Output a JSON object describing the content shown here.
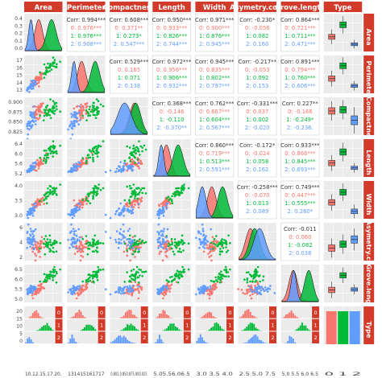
{
  "chart_data": {
    "type": "scatter-matrix",
    "variables": [
      "Area",
      "Perimeter",
      "Compactness",
      "Length",
      "Width",
      "Asymetry.coef",
      "Grove.length",
      "Type"
    ],
    "groups": [
      "0",
      "1",
      "2"
    ],
    "colors": {
      "0": "#F8766D",
      "1": "#00BA38",
      "2": "#619CFF",
      "strip": "#d23a2a",
      "panel": "#ebebeb",
      "grid": "#ffffff"
    },
    "ranges": {
      "Area": [
        10,
        21.5
      ],
      "Perimeter": [
        12.4,
        17.4
      ],
      "Compactness": [
        0.805,
        0.92
      ],
      "Length": [
        4.8,
        6.8
      ],
      "Width": [
        2.6,
        4.1
      ],
      "Asymetry.coef": [
        0,
        8.5
      ],
      "Grove.length": [
        4.4,
        6.6
      ]
    },
    "group_means": {
      "Area": [
        14.33,
        18.33,
        11.87
      ],
      "Perimeter": [
        14.29,
        16.14,
        13.25
      ],
      "Compactness": [
        0.88,
        0.884,
        0.849
      ],
      "Length": [
        5.51,
        6.15,
        5.23
      ],
      "Width": [
        3.24,
        3.68,
        2.85
      ],
      "Asymetry.coef": [
        2.67,
        3.64,
        4.79
      ],
      "Grove.length": [
        5.09,
        6.02,
        5.12
      ]
    },
    "group_sd": {
      "Area": [
        1.21,
        1.44,
        0.72
      ],
      "Perimeter": [
        0.57,
        0.62,
        0.34
      ],
      "Compactness": [
        0.016,
        0.016,
        0.022
      ],
      "Length": [
        0.23,
        0.27,
        0.14
      ],
      "Width": [
        0.18,
        0.19,
        0.15
      ],
      "Asymetry.coef": [
        1.17,
        1.18,
        1.34
      ],
      "Grove.length": [
        0.26,
        0.25,
        0.16
      ]
    },
    "y_ticks": {
      "Area": [
        "0.4",
        "0.3",
        "0.2",
        "0.1",
        "0.0"
      ],
      "Perimeter": [
        "17",
        "16",
        "15",
        "14",
        "13"
      ],
      "Compactness": [
        "0.900",
        "0.875",
        "0.850",
        "0.825"
      ],
      "Length": [
        "6.4",
        "6.0",
        "5.6",
        "5.2"
      ],
      "Width": [
        "4.0",
        "3.5",
        "3.0"
      ],
      "Asymetry.coef": [
        "6",
        "4",
        "2"
      ],
      "Grove.length": [
        "6.5",
        "6.0",
        "5.5",
        "5.0"
      ],
      "Type": [
        "20",
        "15",
        "10",
        "5",
        "0"
      ]
    },
    "x_ticks": {
      "Area": "10.12.15.17.20.",
      "Perimeter": "131415161717",
      "Compactness": "0.802.0.850.875.900.925",
      "Length": "5.05.56.06.5",
      "Width": "3.0 3.5 4.0",
      "Asymetry.coef": "2.5 5.0 7.5",
      "Grove.length": "5.0 5.5 6.0 6.5",
      "Type": "0 1 2"
    },
    "correlations": [
      {
        "row": "Area",
        "col": "Perimeter",
        "all": "Corr: 0.994***",
        "g0": "0: 0.976***",
        "g1": "1: 0.976***",
        "g2": "2: 0.908***"
      },
      {
        "row": "Area",
        "col": "Compactness",
        "all": "Corr: 0.608***",
        "g0": "0: 0.371**",
        "g1": "1: 0.273*",
        "g2": "2: 0.547***"
      },
      {
        "row": "Area",
        "col": "Length",
        "all": "Corr: 0.950***",
        "g0": "0: 0.933***",
        "g1": "1: 0.826***",
        "g2": "2: 0.744***"
      },
      {
        "row": "Area",
        "col": "Width",
        "all": "Corr: 0.971***",
        "g0": "0: 0.900***",
        "g1": "1: 0.876***",
        "g2": "2: 0.945***"
      },
      {
        "row": "Area",
        "col": "Asymetry.coef",
        "all": "Corr: -0.230*",
        "g0": "0: -0.056",
        "g1": "1: 0.082",
        "g2": "2: 0.160"
      },
      {
        "row": "Area",
        "col": "Grove.length",
        "all": "Corr: 0.864***",
        "g0": "0: 0.721***",
        "g1": "1: 0.711***",
        "g2": "2: 0.471***"
      },
      {
        "row": "Perimeter",
        "col": "Compactness",
        "all": "Corr: 0.529***",
        "g0": "0: 0.165",
        "g1": "1: 0.071",
        "g2": "2: 0.138"
      },
      {
        "row": "Perimeter",
        "col": "Length",
        "all": "Corr: 0.972***",
        "g0": "0: 0.956***",
        "g1": "1: 0.906***",
        "g2": "2: 0.932***"
      },
      {
        "row": "Perimeter",
        "col": "Width",
        "all": "Corr: 0.945***",
        "g0": "0: 0.835***",
        "g1": "1: 0.802***",
        "g2": "2: 0.797***"
      },
      {
        "row": "Perimeter",
        "col": "Asymetry.coef",
        "all": "Corr: -0.217**",
        "g0": "0: -0.053",
        "g1": "1: 0.092",
        "g2": "2: 0.153"
      },
      {
        "row": "Perimeter",
        "col": "Grove.length",
        "all": "Corr: 0.891***",
        "g0": "0: 0.794***",
        "g1": "1: 0.760***",
        "g2": "2: 0.606***"
      },
      {
        "row": "Compactness",
        "col": "Length",
        "all": "Corr: 0.368***",
        "g0": "0: -0.146",
        "g1": "1: -0.110",
        "g2": "2: -0.370**"
      },
      {
        "row": "Compactness",
        "col": "Width",
        "all": "Corr: 0.762***",
        "g0": "0: 0.667***",
        "g1": "1: 0.604***",
        "g2": "2: 0.567***"
      },
      {
        "row": "Compactness",
        "col": "Asymetry.coef",
        "all": "Corr: -0.331***",
        "g0": "0: 0.037",
        "g1": "1: 0.002",
        "g2": "2: -0.020"
      },
      {
        "row": "Compactness",
        "col": "Grove.length",
        "all": "Corr: 0.227**",
        "g0": "0: -0.166",
        "g1": "1: -0.249*",
        "g2": "2: -0.236."
      },
      {
        "row": "Length",
        "col": "Width",
        "all": "Corr: 0.860***",
        "g0": "0: 0.719***",
        "g1": "1: 0.513***",
        "g2": "2: 0.591***"
      },
      {
        "row": "Length",
        "col": "Asymetry.coef",
        "all": "Corr: -0.172*",
        "g0": "0: -0.024",
        "g1": "1: 0.058",
        "g2": "2: 0.162"
      },
      {
        "row": "Length",
        "col": "Grove.length",
        "all": "Corr: 0.933***",
        "g0": "0: 0.866***",
        "g1": "1: 0.845***",
        "g2": "2: 0.693***"
      },
      {
        "row": "Width",
        "col": "Asymetry.coef",
        "all": "Corr: -0.258***",
        "g0": "0: -0.070",
        "g1": "1: 0.013",
        "g2": "2: 0.089"
      },
      {
        "row": "Width",
        "col": "Grove.length",
        "all": "Corr: 0.749***",
        "g0": "0: 0.447***",
        "g1": "1: 0.555***",
        "g2": "2: 0.260*"
      },
      {
        "row": "Asymetry.coef",
        "col": "Grove.length",
        "all": "Corr: -0.011",
        "g0": "0: 0.060",
        "g1": "1: -0.082",
        "g2": "2: 0.038"
      }
    ],
    "type_counts": [
      70,
      70,
      70
    ]
  }
}
